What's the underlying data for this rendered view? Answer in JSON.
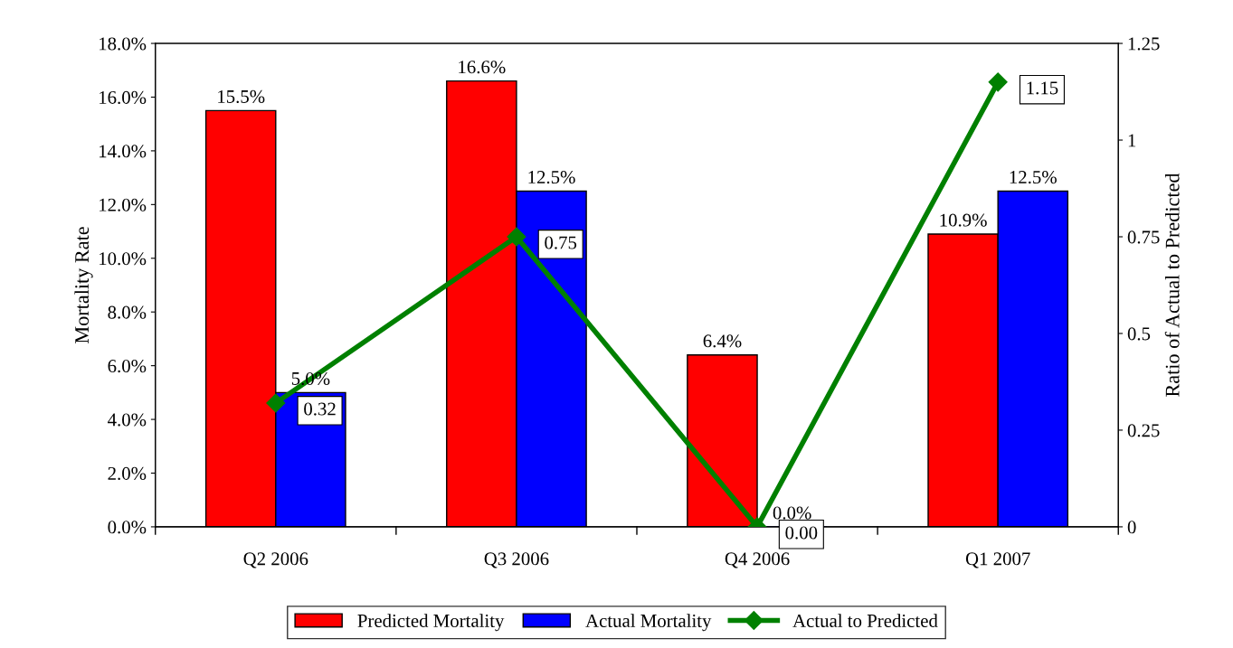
{
  "chart_data": {
    "type": "bar",
    "ylabel": "Mortality Rate",
    "y2label": "Ratio of Actual to Predicted",
    "categories": [
      "Q2 2006",
      "Q3 2006",
      "Q4 2006",
      "Q1 2007"
    ],
    "series": [
      {
        "name": "Predicted Mortality",
        "color": "#ff0000",
        "values": [
          15.5,
          16.6,
          6.4,
          10.9
        ],
        "value_labels": [
          "15.5%",
          "16.6%",
          "6.4%",
          "10.9%"
        ]
      },
      {
        "name": "Actual Mortality",
        "color": "#0000ff",
        "values": [
          5.0,
          12.5,
          0.0,
          12.5
        ],
        "value_labels": [
          "5.0%",
          "12.5%",
          "0.0%",
          "12.5%"
        ]
      },
      {
        "name": "Actual to Predicted",
        "type": "line",
        "axis": "y2",
        "color": "#008000",
        "marker": "diamond",
        "values": [
          0.32,
          0.75,
          0.0,
          1.15
        ],
        "value_labels": [
          "0.32",
          "0.75",
          "0.00",
          "1.15"
        ]
      }
    ],
    "ylim": [
      0,
      18
    ],
    "yticks": [
      {
        "value": 0,
        "label": "0.0%"
      },
      {
        "value": 2,
        "label": "2.0%"
      },
      {
        "value": 4,
        "label": "4.0%"
      },
      {
        "value": 6,
        "label": "6.0%"
      },
      {
        "value": 8,
        "label": "8.0%"
      },
      {
        "value": 10,
        "label": "10.0%"
      },
      {
        "value": 12,
        "label": "12.0%"
      },
      {
        "value": 14,
        "label": "14.0%"
      },
      {
        "value": 16,
        "label": "16.0%"
      },
      {
        "value": 18,
        "label": "18.0%"
      }
    ],
    "y2lim": [
      0,
      1.25
    ],
    "y2ticks": [
      0,
      0.25,
      0.5,
      0.75,
      1,
      1.25
    ],
    "grid": false,
    "legend": "bottom"
  }
}
